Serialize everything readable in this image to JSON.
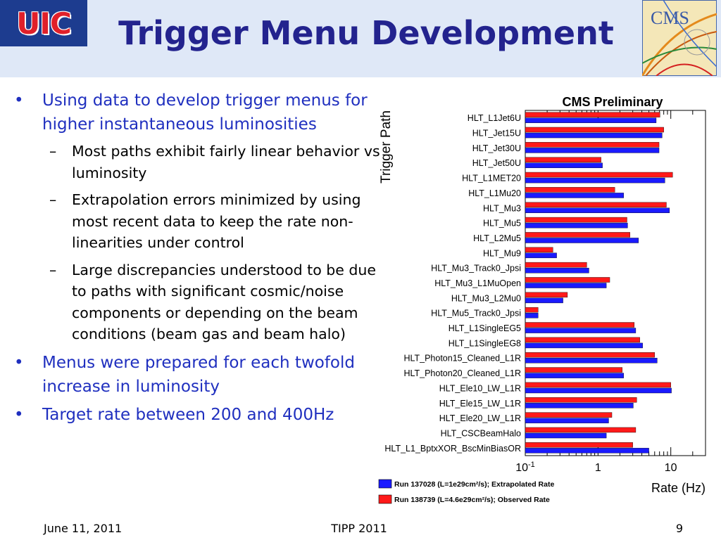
{
  "slide": {
    "logo_left": "UIC",
    "logo_right": "CMS",
    "title": "Trigger Menu Development",
    "bullets": [
      {
        "text": "Using data to develop trigger menus for higher instantaneous luminosities",
        "sub": [
          "Most paths exhibit fairly linear behavior vs luminosity",
          "Extrapolation errors minimized by using most recent data to keep the rate non-linearities under control",
          "Large discrepancies understood to be due to paths with significant cosmic/noise components or depending on the beam conditions (beam gas and beam halo)"
        ]
      },
      {
        "text": "Menus were prepared for each twofold increase in luminosity"
      },
      {
        "text": "Target rate between 200 and 400Hz"
      }
    ],
    "bullet_marker": "•",
    "sub_marker": "–",
    "footer": {
      "date": "June 11, 2011",
      "conference": "TIPP 2011",
      "page": "9"
    }
  },
  "chart_data": {
    "type": "bar",
    "orientation": "horizontal",
    "title": "CMS Preliminary",
    "xlabel": "Rate (Hz)",
    "ylabel": "Trigger Path",
    "xscale": "log",
    "xlim": [
      0.1,
      30
    ],
    "xticks": [
      {
        "value": 0.1,
        "label": "10",
        "sup": "-1"
      },
      {
        "value": 1,
        "label": "1",
        "sup": ""
      },
      {
        "value": 10,
        "label": "10",
        "sup": ""
      }
    ],
    "categories": [
      "HLT_L1Jet6U",
      "HLT_Jet15U",
      "HLT_Jet30U",
      "HLT_Jet50U",
      "HLT_L1MET20",
      "HLT_L1Mu20",
      "HLT_Mu3",
      "HLT_Mu5",
      "HLT_L2Mu5",
      "HLT_Mu9",
      "HLT_Mu3_Track0_Jpsi",
      "HLT_Mu3_L1MuOpen",
      "HLT_Mu3_L2Mu0",
      "HLT_Mu5_Track0_Jpsi",
      "HLT_L1SingleEG5",
      "HLT_L1SingleEG8",
      "HLT_Photon15_Cleaned_L1R",
      "HLT_Photon20_Cleaned_L1R",
      "HLT_Ele10_LW_L1R",
      "HLT_Ele15_LW_L1R",
      "HLT_Ele20_LW_L1R",
      "HLT_CSCBeamHalo",
      "HLT_L1_BptxXOR_BscMinBiasOR"
    ],
    "series": [
      {
        "name": "Run 137028 (L=1e29cm²/s); Extrapolated Rate",
        "color": "#1a1aff",
        "values": [
          6.3,
          7.6,
          6.9,
          1.15,
          8.3,
          2.25,
          9.6,
          2.55,
          3.6,
          0.27,
          0.75,
          1.3,
          0.33,
          0.15,
          3.3,
          4.1,
          6.5,
          2.25,
          10.2,
          3.05,
          1.4,
          1.3,
          5.0
        ]
      },
      {
        "name": "Run 138739 (L=4.6e29cm²/s); Observed Rate",
        "color": "#ff1a1a",
        "values": [
          7.1,
          8.0,
          6.9,
          1.1,
          10.6,
          1.7,
          8.7,
          2.5,
          2.75,
          0.24,
          0.7,
          1.45,
          0.38,
          0.15,
          3.15,
          3.75,
          6.0,
          2.15,
          10.0,
          3.4,
          1.55,
          3.3,
          3.0
        ]
      }
    ],
    "legend": "bottom-left",
    "grid": false
  }
}
